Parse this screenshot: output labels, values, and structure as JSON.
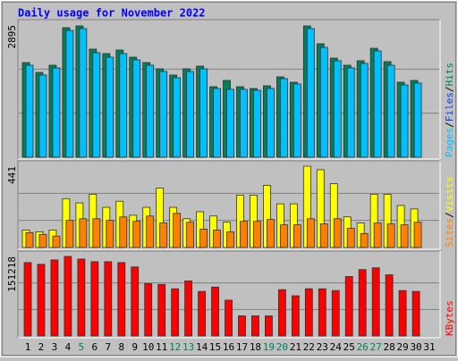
{
  "chart_data": [
    {
      "type": "bar",
      "title": "Daily usage for November 2022",
      "series": [
        {
          "name": "Pages",
          "color": "#00c0ff",
          "values": [
            2015,
            1800,
            1956,
            2778,
            2817,
            2289,
            2191,
            2269,
            2132,
            2015,
            1878,
            1741,
            1878,
            1937,
            1506,
            1487,
            1487,
            1467,
            1506,
            1721,
            1604,
            2817,
            2406,
            2113,
            1956,
            2054,
            2328,
            2015,
            1584,
            1624,
            null
          ]
        },
        {
          "name": "Files",
          "color": "#0040ff",
          "values": [
            null,
            null,
            null,
            null,
            null,
            null,
            null,
            null,
            null,
            null,
            null,
            null,
            null,
            null,
            null,
            null,
            null,
            null,
            null,
            null,
            null,
            null,
            null,
            null,
            null,
            null,
            null,
            null,
            null,
            null,
            null
          ]
        },
        {
          "name": "Hits",
          "color": "#00805c",
          "values": [
            2073,
            1858,
            2015,
            2836,
            2875,
            2367,
            2269,
            2347,
            2191,
            2073,
            1937,
            1800,
            1937,
            1995,
            1545,
            1682,
            1545,
            1506,
            1565,
            1760,
            1643,
            2875,
            2484,
            2171,
            2015,
            2113,
            2386,
            2093,
            1643,
            1682,
            null
          ]
        }
      ],
      "legend_separator": "/",
      "ylim": [
        0,
        2895
      ],
      "yticks": [
        2895
      ]
    },
    {
      "type": "bar",
      "series": [
        {
          "name": "Sites",
          "color": "#ff8000",
          "values": [
            81,
            71,
            62,
            147,
            156,
            156,
            147,
            166,
            142,
            171,
            133,
            185,
            137,
            100,
            95,
            85,
            142,
            142,
            152,
            123,
            123,
            156,
            128,
            156,
            104,
            76,
            133,
            128,
            123,
            137,
            null
          ]
        },
        {
          "name": "Visits",
          "color": "#ffff00",
          "values": [
            95,
            85,
            95,
            265,
            242,
            289,
            218,
            251,
            175,
            218,
            322,
            218,
            156,
            194,
            171,
            137,
            284,
            284,
            337,
            237,
            237,
            441,
            422,
            346,
            166,
            133,
            289,
            289,
            228,
            209,
            null
          ]
        }
      ],
      "legend_separator": "/",
      "ylim": [
        0,
        441
      ],
      "yticks": [
        441
      ]
    },
    {
      "type": "bar",
      "categories": [
        "1",
        "2",
        "3",
        "4",
        "5",
        "6",
        "7",
        "8",
        "9",
        "10",
        "11",
        "12",
        "13",
        "14",
        "15",
        "16",
        "17",
        "18",
        "19",
        "20",
        "21",
        "22",
        "23",
        "24",
        "25",
        "26",
        "27",
        "28",
        "29",
        "30",
        "31"
      ],
      "category_colors": [
        "#000000",
        "#000000",
        "#000000",
        "#000000",
        "#00805c",
        "#000000",
        "#000000",
        "#000000",
        "#000000",
        "#000000",
        "#000000",
        "#00805c",
        "#00805c",
        "#000000",
        "#000000",
        "#000000",
        "#000000",
        "#000000",
        "#00805c",
        "#00805c",
        "#000000",
        "#000000",
        "#000000",
        "#000000",
        "#000000",
        "#00805c",
        "#00805c",
        "#000000",
        "#000000",
        "#000000",
        "#000000"
      ],
      "series": [
        {
          "name": "KBytes",
          "color": "#ff0000",
          "values": [
            139583,
            136259,
            144568,
            151218,
            146230,
            141245,
            141245,
            139583,
            131276,
            99703,
            98041,
            89733,
            104688,
            84747,
            93055,
            68130,
            38219,
            38219,
            38219,
            88071,
            76439,
            89733,
            89733,
            86410,
            112997,
            126290,
            129613,
            116320,
            86410,
            84747,
            null
          ]
        }
      ],
      "ylim": [
        0,
        151218
      ],
      "yticks": [
        151218
      ]
    }
  ]
}
